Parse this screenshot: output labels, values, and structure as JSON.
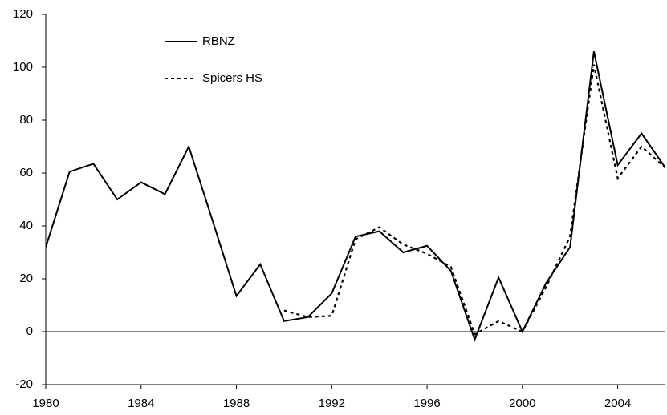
{
  "chart_data": {
    "type": "line",
    "x": [
      1980,
      1981,
      1982,
      1983,
      1984,
      1985,
      1986,
      1987,
      1988,
      1989,
      1990,
      1991,
      1992,
      1993,
      1994,
      1995,
      1996,
      1997,
      1998,
      1999,
      2000,
      2001,
      2002,
      2003,
      2004,
      2005,
      2006
    ],
    "series": [
      {
        "name": "RBNZ",
        "color": "#000000",
        "dash": false,
        "values": [
          32,
          60.5,
          63.5,
          50,
          56.5,
          52,
          70,
          42,
          13.5,
          25.5,
          4,
          5.5,
          14.5,
          36,
          38,
          30,
          32.5,
          23,
          -3,
          20.5,
          0,
          18.5,
          32,
          106,
          63,
          75,
          62
        ]
      },
      {
        "name": "Spicers HS",
        "color": "#000000",
        "dash": true,
        "values": [
          null,
          null,
          null,
          null,
          null,
          null,
          null,
          null,
          null,
          null,
          8,
          5.5,
          6,
          35,
          39.5,
          33,
          29.5,
          24.5,
          -1,
          4,
          0,
          17,
          36,
          101,
          58,
          70,
          62
        ]
      }
    ],
    "xlim": [
      1980,
      2006
    ],
    "xticks": [
      1980,
      1984,
      1988,
      1992,
      1996,
      2000,
      2004
    ],
    "ylim": [
      -20,
      120
    ],
    "yticks": [
      -20,
      0,
      20,
      40,
      60,
      80,
      100,
      120
    ],
    "legend": "top-left"
  }
}
